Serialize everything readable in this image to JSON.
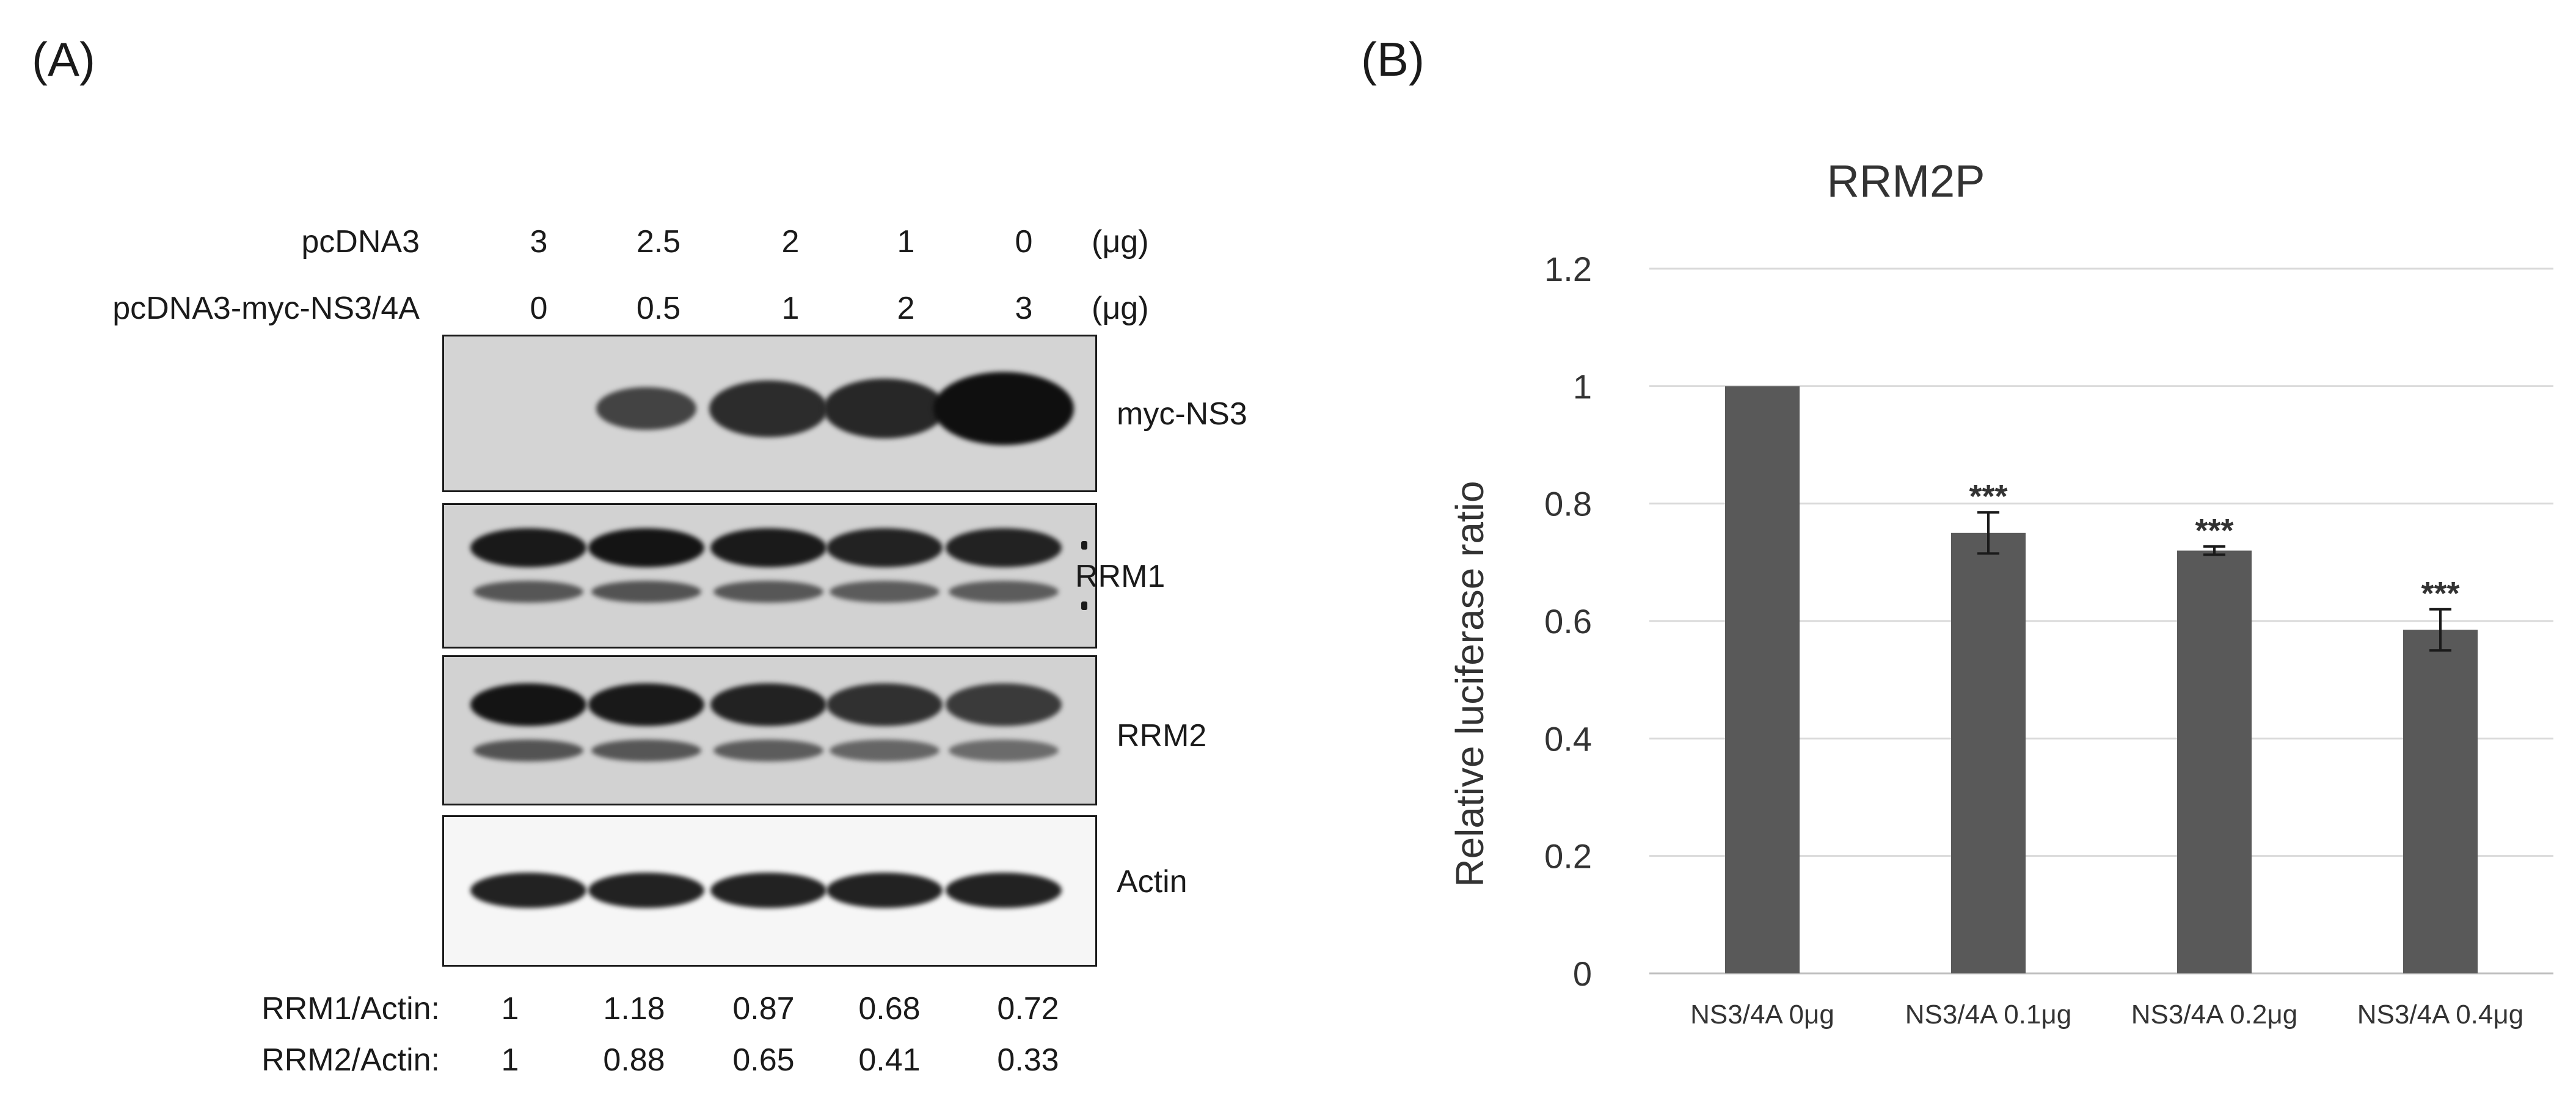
{
  "panel_a": {
    "label": "(A)",
    "header_rows": [
      {
        "name": "pcDNA3",
        "values": [
          "3",
          "2.5",
          "2",
          "1",
          "0"
        ],
        "unit": "(μg)"
      },
      {
        "name": "pcDNA3-myc-NS3/4A",
        "values": [
          "0",
          "0.5",
          "1",
          "2",
          "3"
        ],
        "unit": "(μg)"
      }
    ],
    "blots": [
      {
        "label": "myc-NS3",
        "band_intensity": [
          0.0,
          0.45,
          0.7,
          0.75,
          1.0
        ]
      },
      {
        "label": "RRM1",
        "band_intensity": [
          0.9,
          0.95,
          0.88,
          0.8,
          0.8
        ]
      },
      {
        "label": "RRM2",
        "band_intensity": [
          0.95,
          0.9,
          0.8,
          0.65,
          0.55
        ]
      },
      {
        "label": "Actin",
        "band_intensity": [
          0.8,
          0.8,
          0.8,
          0.8,
          0.8
        ]
      }
    ],
    "ratio_rows": [
      {
        "name": "RRM1/Actin:",
        "values": [
          "1",
          "1.18",
          "0.87",
          "0.68",
          "0.72"
        ]
      },
      {
        "name": "RRM2/Actin:",
        "values": [
          "1",
          "0.88",
          "0.65",
          "0.41",
          "0.33"
        ]
      }
    ]
  },
  "panel_b": {
    "label": "(B)"
  },
  "chart_data": {
    "type": "bar",
    "title": "RRM2P",
    "xlabel": "",
    "ylabel": "Relative luciferase ratio",
    "categories": [
      "NS3/4A 0μg",
      "NS3/4A 0.1μg",
      "NS3/4A 0.2μg",
      "NS3/4A 0.4μg"
    ],
    "values": [
      1.0,
      0.75,
      0.72,
      0.585
    ],
    "errors": [
      0.0,
      0.035,
      0.007,
      0.035
    ],
    "significance": [
      "",
      "***",
      "***",
      "***"
    ],
    "ylim": [
      0,
      1.2
    ],
    "yticks": [
      "0",
      "0.2",
      "0.4",
      "0.6",
      "0.8",
      "1",
      "1.2"
    ],
    "ytick_values": [
      0,
      0.2,
      0.4,
      0.6,
      0.8,
      1.0,
      1.2
    ],
    "grid": true,
    "bar_color": "#595959",
    "grid_color": "#d9d9d9"
  }
}
